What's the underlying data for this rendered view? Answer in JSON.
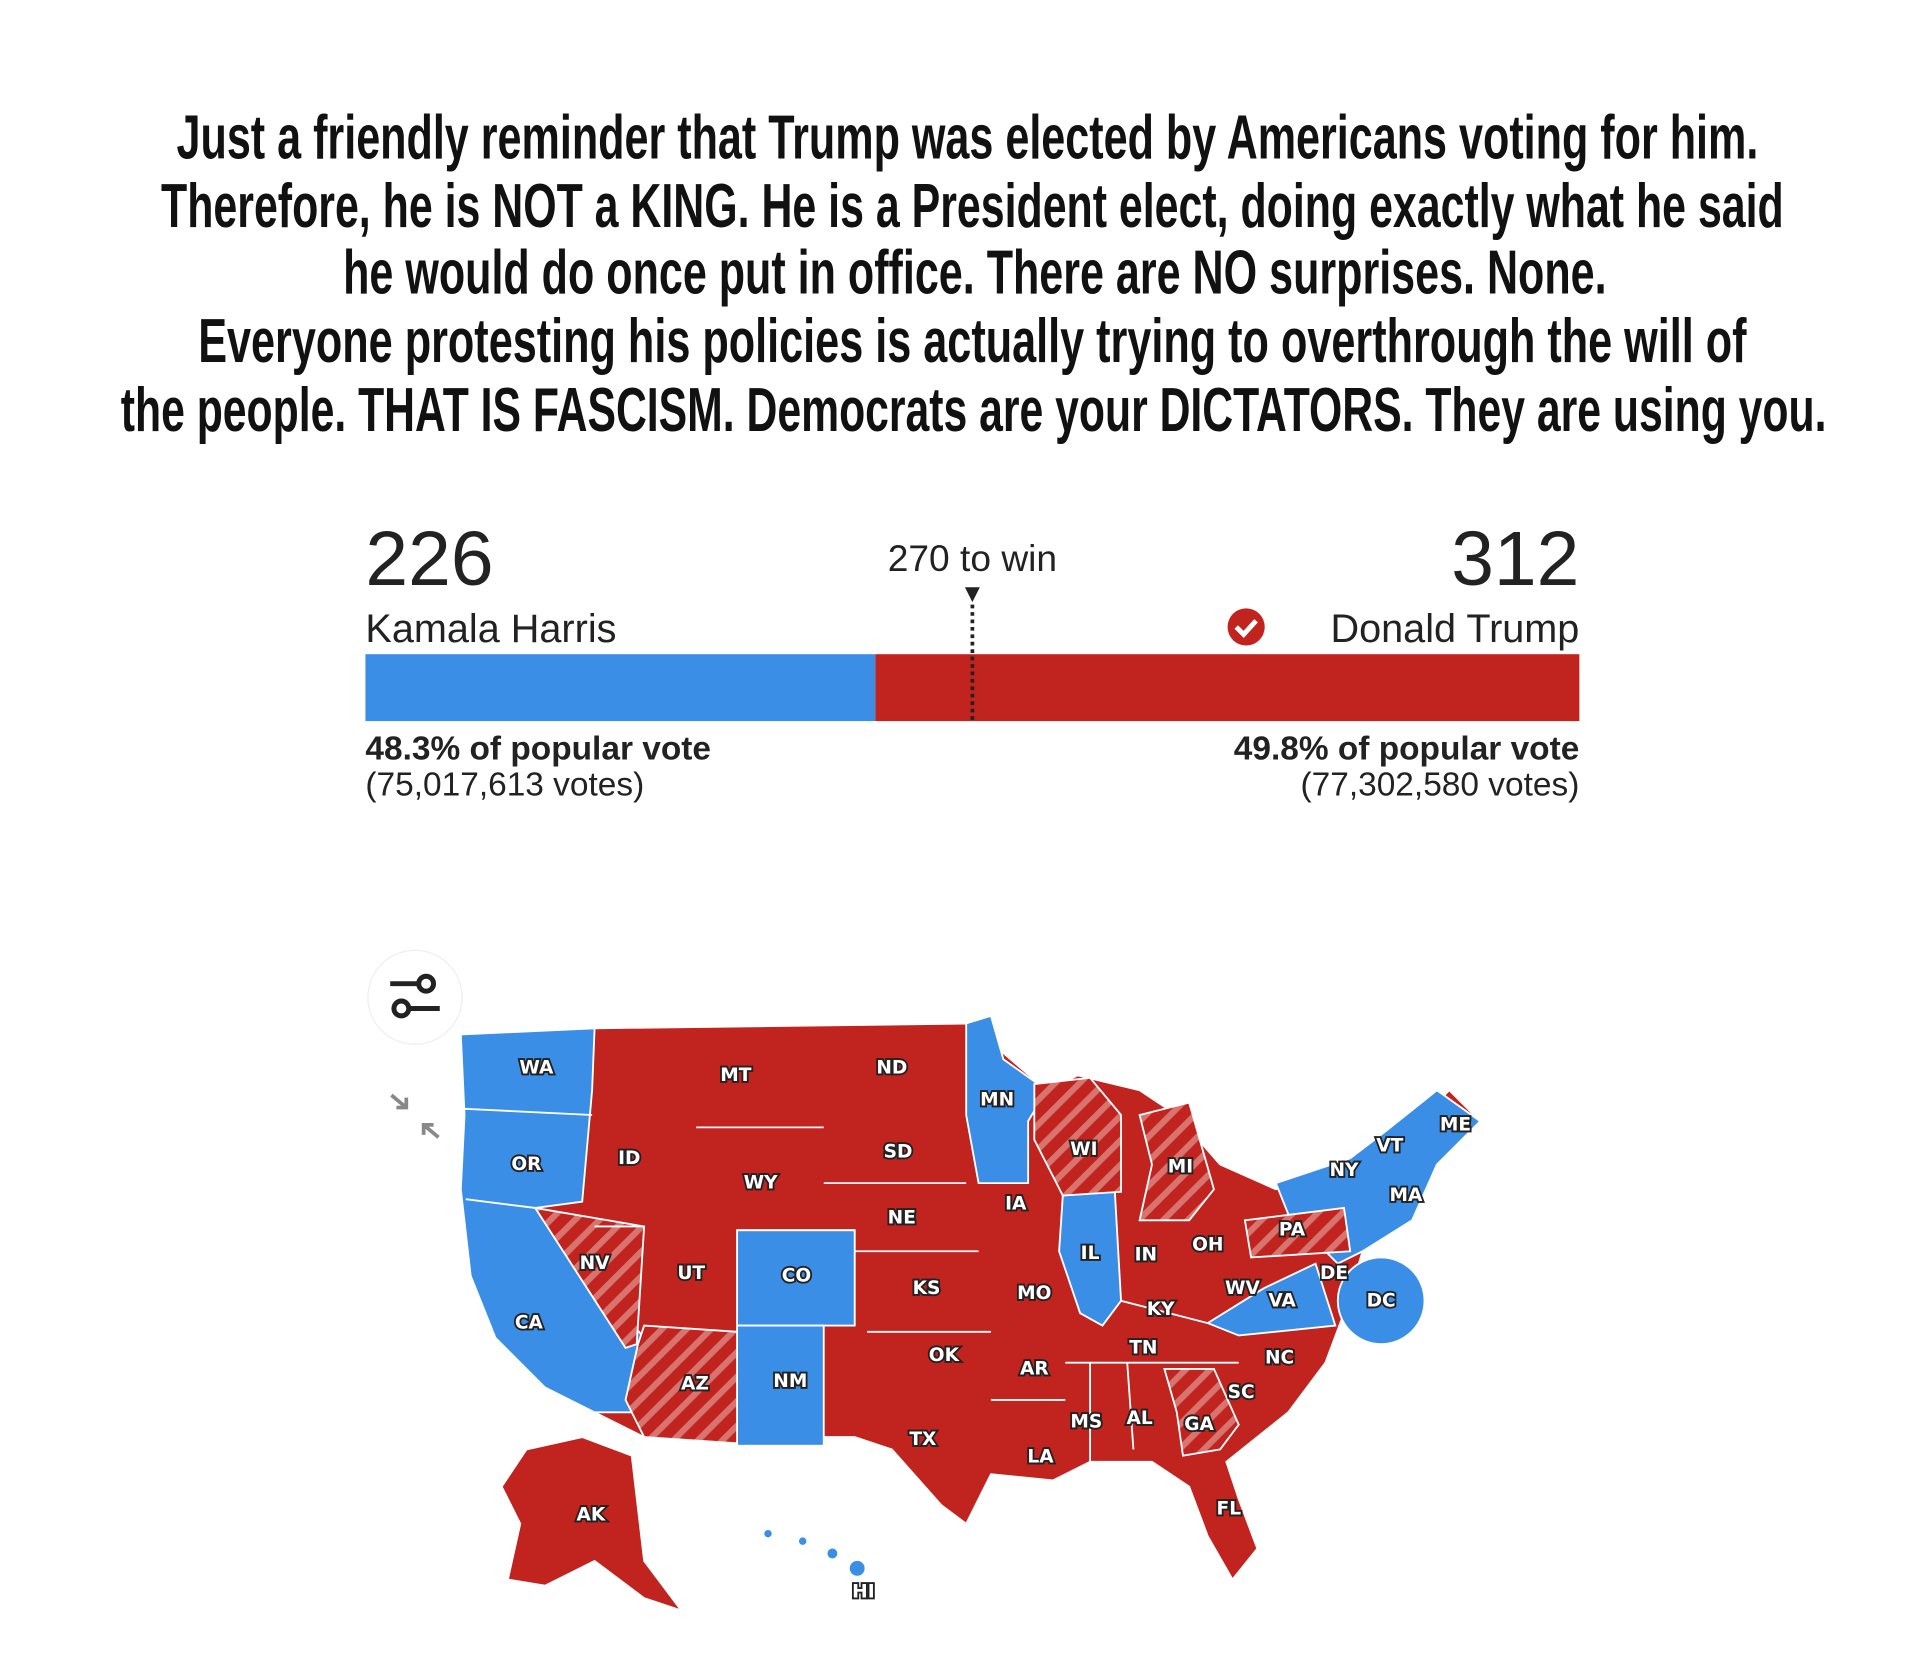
{
  "caption": [
    "Just a friendly reminder that Trump was elected by Americans voting for him.",
    "Therefore, he is NOT a KING. He is a President elect, doing exactly what he said",
    "he would do once put in office. There are NO surprises. None.",
    "Everyone protesting his policies is actually trying to overthrough the will of",
    "the people. THAT IS FASCISM. Democrats are your DICTATORS. They are using you."
  ],
  "results": {
    "threshold": "270 to win",
    "harris": {
      "electoral_votes": 226,
      "name": "Kamala Harris",
      "popular_vote": "48.3% of popular vote",
      "votes": "(75,017,613 votes)",
      "color": "#3a8ee6"
    },
    "trump": {
      "electoral_votes": 312,
      "name": "Donald Trump",
      "popular_vote": "49.8% of popular vote",
      "votes": "(77,302,580 votes)",
      "color": "#c1231f"
    }
  },
  "map": {
    "states": [
      "WA",
      "MT",
      "ND",
      "MN",
      "ME",
      "VT",
      "NY",
      "OR",
      "ID",
      "WY",
      "SD",
      "WI",
      "MI",
      "IA",
      "MA",
      "NE",
      "PA",
      "IL",
      "IN",
      "OH",
      "NV",
      "UT",
      "CO",
      "KS",
      "MO",
      "WV",
      "VA",
      "DE",
      "DC",
      "KY",
      "CA",
      "TN",
      "NC",
      "OK",
      "AR",
      "AZ",
      "NM",
      "SC",
      "MS",
      "AL",
      "GA",
      "TX",
      "LA",
      "FL",
      "AK",
      "HI"
    ]
  }
}
